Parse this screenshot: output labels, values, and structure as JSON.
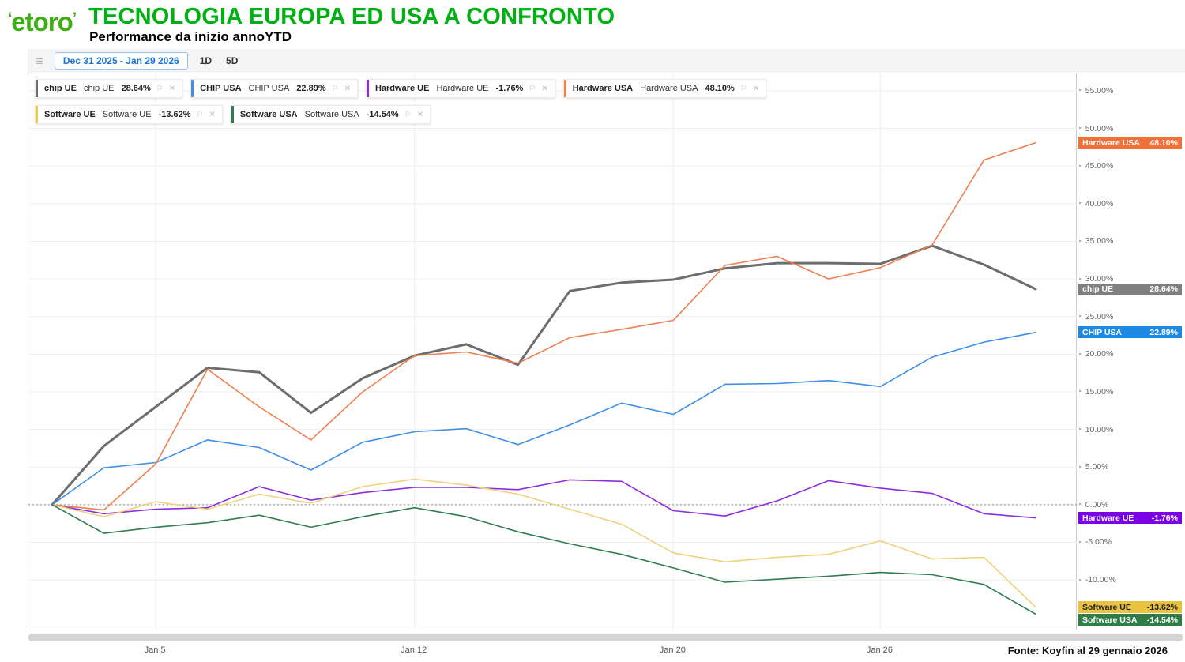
{
  "header": {
    "logo_text": "etoro",
    "title": "TECNOLOGIA EUROPA ED USA A CONFRONTO",
    "subtitle": "Performance da inizio annoYTD"
  },
  "toolbar": {
    "date_range": "Dec 31 2025 - Jan 29 2026",
    "button_1d": "1D",
    "button_5d": "5D"
  },
  "icons": {
    "legend-settings-icon": "≡",
    "alert-icon": "⚐",
    "close-icon": "✕"
  },
  "legend": [
    {
      "label": "chip UE",
      "label2": "chip UE",
      "value": "28.64%",
      "color": "#6d6d6d"
    },
    {
      "label": "CHIP USA",
      "label2": "CHIP USA",
      "value": "22.89%",
      "color": "#3d8fe8"
    },
    {
      "label": "Hardware UE",
      "label2": "Hardware UE",
      "value": "-1.76%",
      "color": "#8f2be0"
    },
    {
      "label": "Hardware USA",
      "label2": "Hardware USA",
      "value": "48.10%",
      "color": "#f07f4f"
    },
    {
      "label": "Software UE",
      "label2": "Software UE",
      "value": "-13.62%",
      "color": "#edc94f"
    },
    {
      "label": "Software USA",
      "label2": "Software USA",
      "value": "-14.54%",
      "color": "#2f7d4f"
    }
  ],
  "chart_data": {
    "type": "line",
    "x": [
      "Dec 31",
      "Jan 2",
      "Jan 5",
      "Jan 6",
      "Jan 7",
      "Jan 8",
      "Jan 9",
      "Jan 12",
      "Jan 13",
      "Jan 14",
      "Jan 15",
      "Jan 16",
      "Jan 20",
      "Jan 21",
      "Jan 22",
      "Jan 23",
      "Jan 26",
      "Jan 27",
      "Jan 28",
      "Jan 29"
    ],
    "x_tick_indices": [
      2,
      7,
      12,
      16
    ],
    "x_tick_labels": [
      "Jan 5",
      "Jan 12",
      "Jan 20",
      "Jan 26"
    ],
    "y_ticks": [
      55,
      50,
      45,
      40,
      35,
      30,
      25,
      20,
      15,
      10,
      5,
      0,
      -5,
      -10
    ],
    "ylim": {
      "min": -16.6,
      "max": 57.3
    },
    "zero_line": 0,
    "grid": true,
    "legend_position": "top-left",
    "series": [
      {
        "name": "chip UE",
        "color": "#6d6d6d",
        "width": 3,
        "final_label": "28.64%",
        "badge_bg": "#7f7f7f",
        "badge_text": "#ffffff",
        "values": [
          0,
          7.8,
          13.0,
          18.2,
          17.6,
          12.2,
          16.8,
          19.8,
          21.3,
          18.6,
          28.4,
          29.5,
          29.9,
          31.4,
          32.1,
          32.1,
          32.0,
          34.4,
          31.9,
          28.64
        ]
      },
      {
        "name": "CHIP USA",
        "color": "#3d8fe8",
        "width": 1.6,
        "final_label": "22.89%",
        "badge_bg": "#1e88e5",
        "badge_text": "#ffffff",
        "values": [
          0,
          4.9,
          5.6,
          8.6,
          7.6,
          4.6,
          8.3,
          9.7,
          10.1,
          8.0,
          10.6,
          13.5,
          12.0,
          16.0,
          16.1,
          16.5,
          15.7,
          19.6,
          21.6,
          22.89
        ]
      },
      {
        "name": "Hardware UE",
        "color": "#8f2be0",
        "width": 1.6,
        "final_label": "-1.76%",
        "badge_bg": "#7a00e6",
        "badge_text": "#ffffff",
        "values": [
          0,
          -1.2,
          -0.6,
          -0.4,
          2.4,
          0.6,
          1.6,
          2.3,
          2.3,
          2.0,
          3.3,
          3.1,
          -0.8,
          -1.5,
          0.5,
          3.2,
          2.2,
          1.5,
          -1.2,
          -1.76
        ]
      },
      {
        "name": "Hardware USA",
        "color": "#f07f4f",
        "width": 1.6,
        "final_label": "48.10%",
        "badge_bg": "#ef7038",
        "badge_text": "#ffffff",
        "values": [
          0,
          -0.7,
          5.4,
          18.0,
          13.0,
          8.6,
          15.0,
          19.8,
          20.3,
          18.8,
          22.2,
          23.3,
          24.5,
          31.8,
          33.0,
          30.0,
          31.5,
          34.5,
          45.8,
          48.1
        ]
      },
      {
        "name": "Software UE",
        "color": "#eed27a",
        "width": 1.6,
        "final_label": "-13.62%",
        "badge_bg": "#e9c33e",
        "badge_text": "#222222",
        "values": [
          0,
          -1.6,
          0.4,
          -0.6,
          1.4,
          0.2,
          2.4,
          3.4,
          2.6,
          1.4,
          -0.6,
          -2.6,
          -6.4,
          -7.6,
          -7.0,
          -6.6,
          -4.8,
          -7.2,
          -7.0,
          -13.62
        ]
      },
      {
        "name": "Software USA",
        "color": "#2f7d4f",
        "width": 1.6,
        "final_label": "-14.54%",
        "badge_bg": "#2e7d46",
        "badge_text": "#ffffff",
        "values": [
          0,
          -3.8,
          -3.0,
          -2.4,
          -1.4,
          -3.0,
          -1.6,
          -0.4,
          -1.6,
          -3.6,
          -5.2,
          -6.6,
          -8.4,
          -10.3,
          -9.9,
          -9.5,
          -9.0,
          -9.3,
          -10.6,
          -14.54
        ]
      }
    ]
  },
  "footer": {
    "source": "Fonte:  Koyfin al 29  gennaio 2026"
  }
}
